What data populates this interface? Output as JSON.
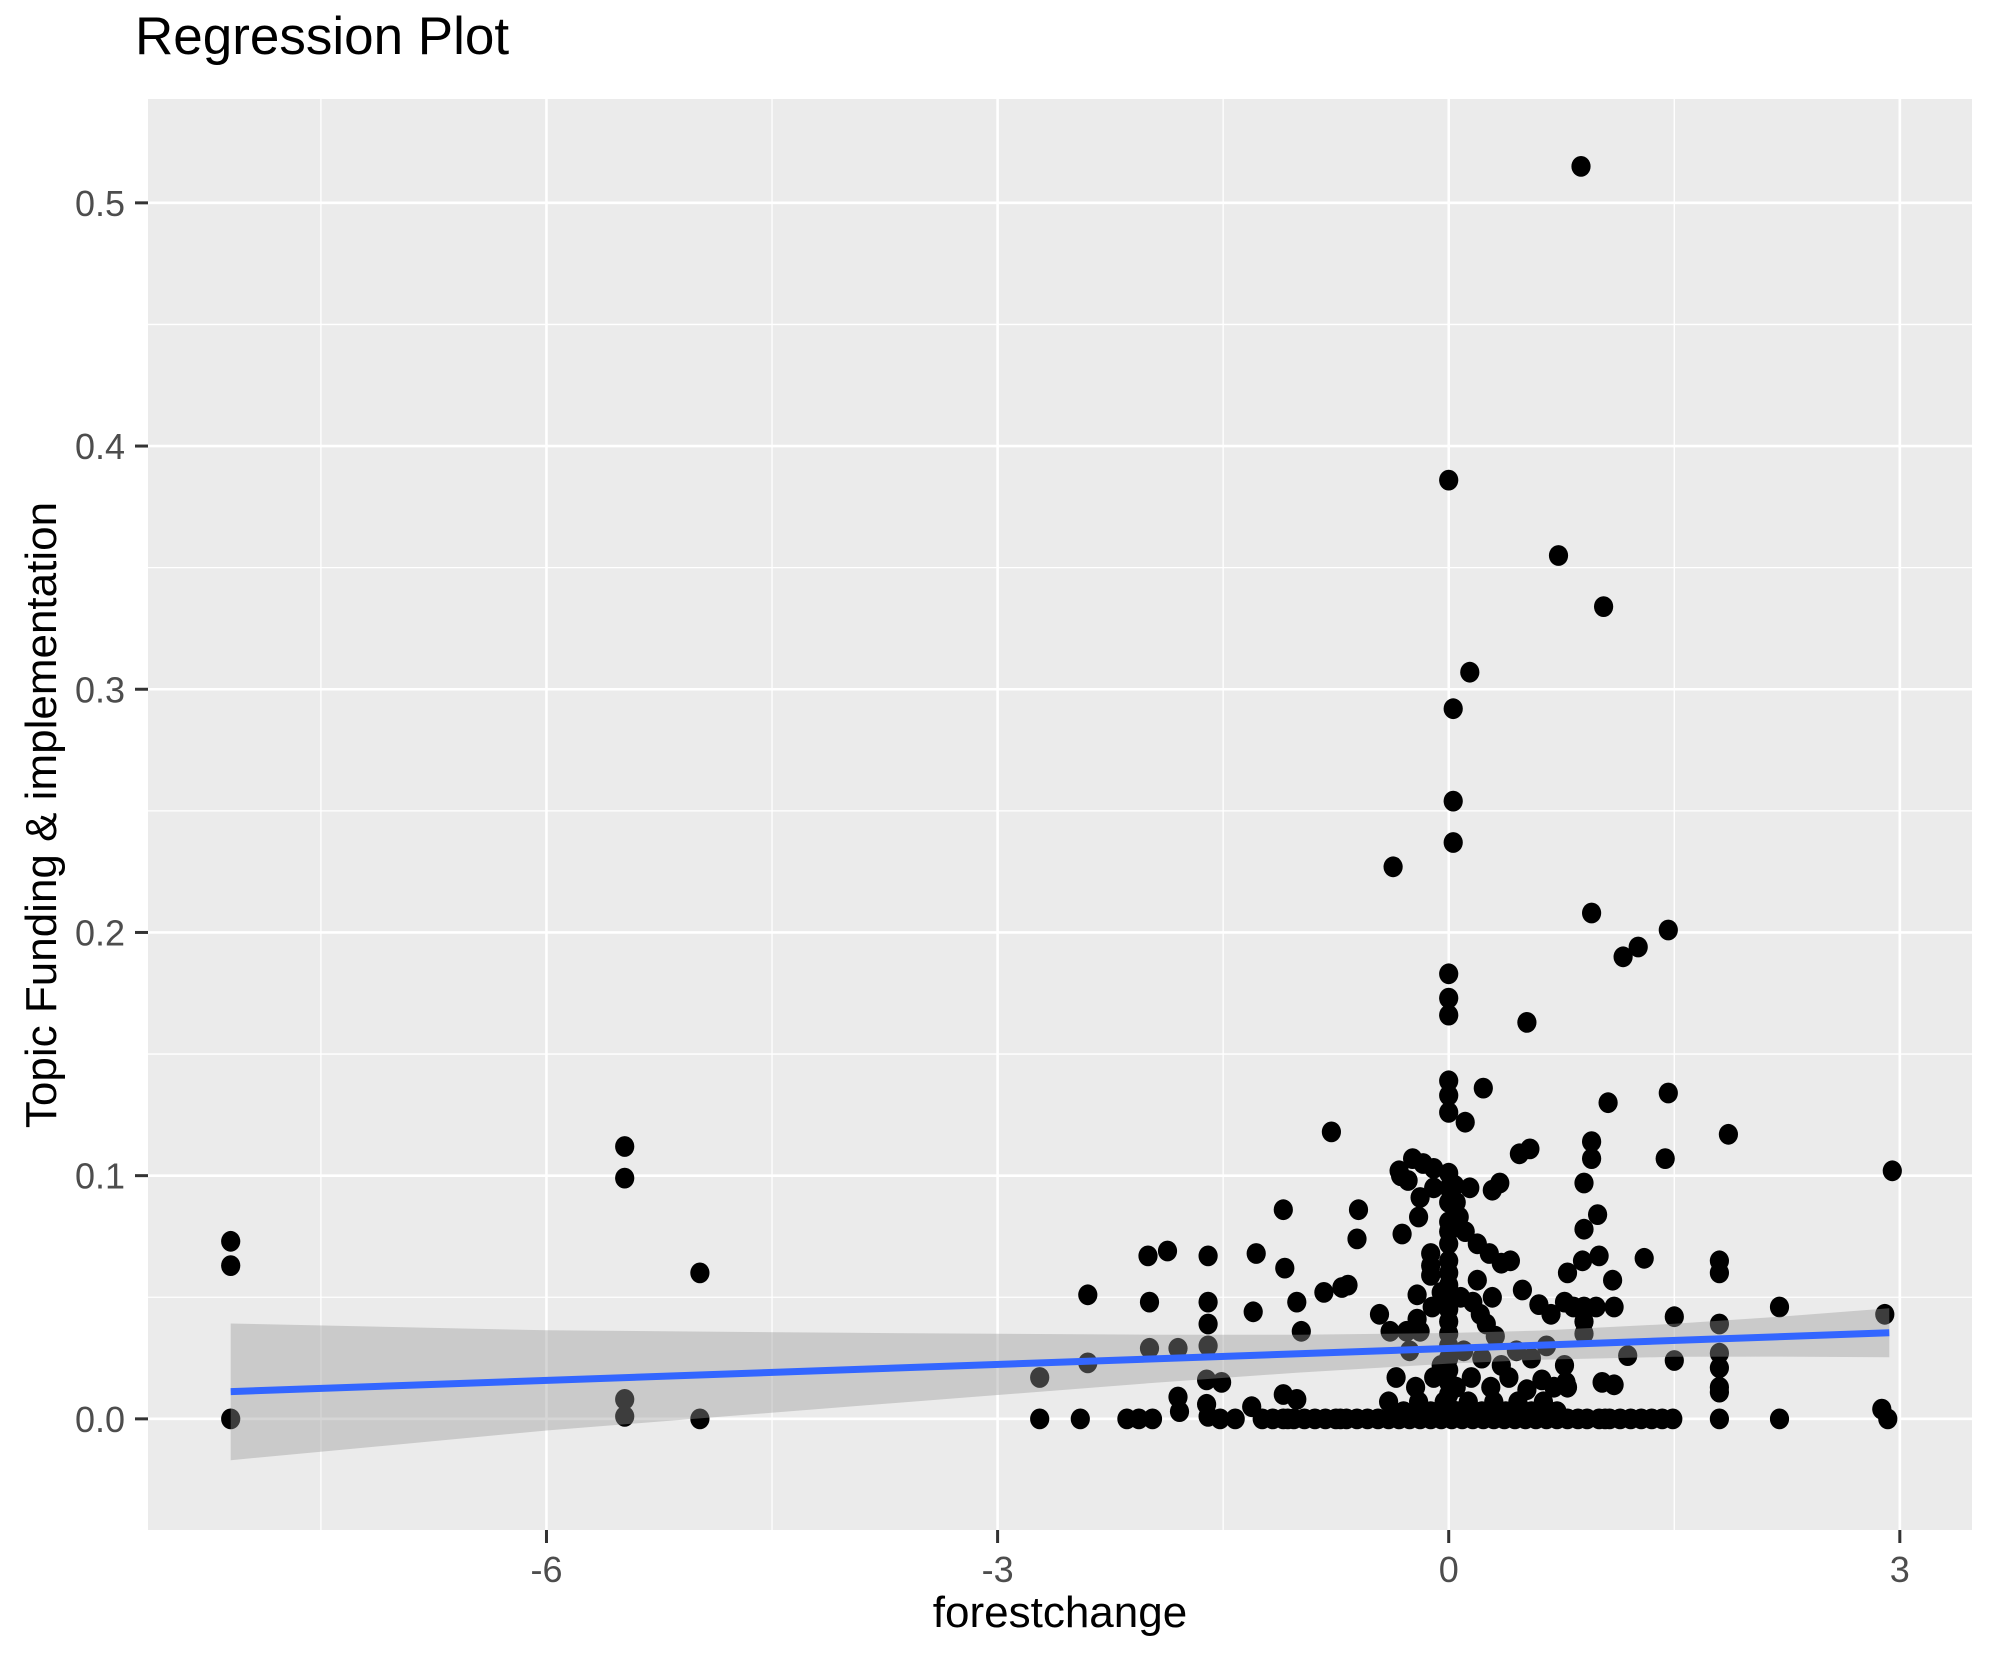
{
  "title": "Regression Plot",
  "chart_data": {
    "type": "scatter",
    "title": "Regression Plot",
    "xlabel": "forestchange",
    "ylabel": "Topic Funding & implementation",
    "xlim": [
      -8.65,
      3.48
    ],
    "ylim": [
      -0.0457,
      0.5427
    ],
    "grid": true,
    "legend": "none",
    "x_ticks": [
      {
        "value": -6,
        "label": "-6"
      },
      {
        "value": -3,
        "label": "-3"
      },
      {
        "value": 0,
        "label": "0"
      },
      {
        "value": 3,
        "label": "3"
      }
    ],
    "y_ticks": [
      {
        "value": 0.0,
        "label": "0.0"
      },
      {
        "value": 0.1,
        "label": "0.1"
      },
      {
        "value": 0.2,
        "label": "0.2"
      },
      {
        "value": 0.3,
        "label": "0.3"
      },
      {
        "value": 0.4,
        "label": "0.4"
      },
      {
        "value": 0.5,
        "label": "0.5"
      }
    ],
    "x_minor_ticks": [
      -7.5,
      -4.5,
      -1.5,
      1.5
    ],
    "y_minor_ticks": [
      0.05,
      0.15,
      0.25,
      0.35,
      0.45
    ],
    "regression_line": {
      "x1": -8.1,
      "y1": 0.0112,
      "x2": 2.93,
      "y2": 0.0354
    },
    "confidence_ribbon": [
      {
        "x": -8.1,
        "lo": -0.017,
        "hi": 0.0392
      },
      {
        "x": -6.0,
        "lo": -0.0048,
        "hi": 0.0364
      },
      {
        "x": -4.0,
        "lo": 0.005,
        "hi": 0.0354
      },
      {
        "x": -2.0,
        "lo": 0.0146,
        "hi": 0.0346
      },
      {
        "x": -1.0,
        "lo": 0.019,
        "hi": 0.0346
      },
      {
        "x": 0.0,
        "lo": 0.0227,
        "hi": 0.0353
      },
      {
        "x": 0.6,
        "lo": 0.0243,
        "hi": 0.0363
      },
      {
        "x": 1.5,
        "lo": 0.0255,
        "hi": 0.0391
      },
      {
        "x": 2.2,
        "lo": 0.0256,
        "hi": 0.042
      },
      {
        "x": 2.93,
        "lo": 0.0253,
        "hi": 0.0455
      }
    ],
    "points": [
      [
        -8.1,
        0.073
      ],
      [
        -8.1,
        0.063
      ],
      [
        -8.1,
        0.0
      ],
      [
        -5.48,
        0.112
      ],
      [
        -5.48,
        0.099
      ],
      [
        -5.48,
        0.008
      ],
      [
        -5.48,
        0.001
      ],
      [
        -4.98,
        0.06
      ],
      [
        -4.98,
        0.0
      ],
      [
        -2.72,
        0.017
      ],
      [
        -2.72,
        0.0
      ],
      [
        -2.45,
        0.0
      ],
      [
        -2.4,
        0.051
      ],
      [
        -2.4,
        0.023
      ],
      [
        -2.14,
        0.0
      ],
      [
        -2.06,
        0.0
      ],
      [
        -2.0,
        0.067
      ],
      [
        -1.99,
        0.048
      ],
      [
        -1.99,
        0.029
      ],
      [
        -1.97,
        0.0
      ],
      [
        -1.87,
        0.069
      ],
      [
        -1.8,
        0.029
      ],
      [
        -1.8,
        0.009
      ],
      [
        -1.79,
        0.003
      ],
      [
        -1.61,
        0.016
      ],
      [
        -1.61,
        0.006
      ],
      [
        -1.6,
        0.067
      ],
      [
        -1.6,
        0.048
      ],
      [
        -1.6,
        0.039
      ],
      [
        -1.6,
        0.03
      ],
      [
        -1.6,
        0.001
      ],
      [
        -1.52,
        0.0
      ],
      [
        -1.51,
        0.015
      ],
      [
        -1.42,
        0.0
      ],
      [
        -1.31,
        0.005
      ],
      [
        -1.3,
        0.044
      ],
      [
        -1.28,
        0.068
      ],
      [
        -1.1,
        0.086
      ],
      [
        -1.1,
        0.01
      ],
      [
        -1.09,
        0.062
      ],
      [
        -1.07,
        0.0
      ],
      [
        -1.01,
        0.048
      ],
      [
        -1.01,
        0.008
      ],
      [
        -0.98,
        0.036
      ],
      [
        -0.83,
        0.052
      ],
      [
        -0.78,
        0.118
      ],
      [
        -0.72,
        0.0
      ],
      [
        -0.71,
        0.054
      ],
      [
        -0.67,
        0.055
      ],
      [
        -0.61,
        0.074
      ],
      [
        -0.6,
        0.086
      ],
      [
        -0.46,
        0.043
      ],
      [
        -0.4,
        0.007
      ],
      [
        -0.39,
        0.036
      ],
      [
        -0.37,
        0.227
      ],
      [
        -0.35,
        0.017
      ],
      [
        -0.33,
        0.102
      ],
      [
        -0.32,
        0.1
      ],
      [
        -0.31,
        0.076
      ],
      [
        -0.3,
        0.003
      ],
      [
        -0.28,
        0.036
      ],
      [
        -0.27,
        0.098
      ],
      [
        -0.26,
        0.028
      ],
      [
        -0.24,
        0.107
      ],
      [
        -0.22,
        0.013
      ],
      [
        -0.21,
        0.051
      ],
      [
        -0.21,
        0.041
      ],
      [
        -0.2,
        0.083
      ],
      [
        -0.2,
        0.007
      ],
      [
        -0.19,
        0.091
      ],
      [
        -0.19,
        0.036
      ],
      [
        -0.17,
        0.105
      ],
      [
        -0.12,
        0.068
      ],
      [
        -0.12,
        0.063
      ],
      [
        -0.12,
        0.059
      ],
      [
        -0.12,
        0.003
      ],
      [
        -0.11,
        0.046
      ],
      [
        -0.1,
        0.103
      ],
      [
        -0.1,
        0.095
      ],
      [
        -0.1,
        0.017
      ],
      [
        -0.05,
        0.052
      ],
      [
        -0.05,
        0.022
      ],
      [
        -0.03,
        0.007
      ],
      [
        0.0,
        0.386
      ],
      [
        0.0,
        0.183
      ],
      [
        0.0,
        0.173
      ],
      [
        0.0,
        0.166
      ],
      [
        0.0,
        0.139
      ],
      [
        0.0,
        0.133
      ],
      [
        0.0,
        0.126
      ],
      [
        0.0,
        0.101
      ],
      [
        0.0,
        0.095
      ],
      [
        0.0,
        0.089
      ],
      [
        0.0,
        0.081
      ],
      [
        0.0,
        0.077
      ],
      [
        0.0,
        0.072
      ],
      [
        0.0,
        0.065
      ],
      [
        0.0,
        0.06
      ],
      [
        0.0,
        0.055
      ],
      [
        0.0,
        0.05
      ],
      [
        0.0,
        0.045
      ],
      [
        0.0,
        0.04
      ],
      [
        0.0,
        0.035
      ],
      [
        0.0,
        0.03
      ],
      [
        0.0,
        0.025
      ],
      [
        0.0,
        0.02
      ],
      [
        0.0,
        0.015
      ],
      [
        0.0,
        0.01
      ],
      [
        0.0,
        0.005
      ],
      [
        0.03,
        0.292
      ],
      [
        0.03,
        0.254
      ],
      [
        0.03,
        0.237
      ],
      [
        0.04,
        0.096
      ],
      [
        0.05,
        0.089
      ],
      [
        0.05,
        0.013
      ],
      [
        0.06,
        0.003
      ],
      [
        0.07,
        0.083
      ],
      [
        0.08,
        0.05
      ],
      [
        0.1,
        0.028
      ],
      [
        0.11,
        0.122
      ],
      [
        0.11,
        0.077
      ],
      [
        0.13,
        0.007
      ],
      [
        0.14,
        0.307
      ],
      [
        0.14,
        0.095
      ],
      [
        0.15,
        0.017
      ],
      [
        0.16,
        0.048
      ],
      [
        0.19,
        0.072
      ],
      [
        0.19,
        0.057
      ],
      [
        0.21,
        0.043
      ],
      [
        0.22,
        0.025
      ],
      [
        0.22,
        0.003
      ],
      [
        0.23,
        0.136
      ],
      [
        0.25,
        0.039
      ],
      [
        0.27,
        0.068
      ],
      [
        0.28,
        0.013
      ],
      [
        0.29,
        0.094
      ],
      [
        0.29,
        0.05
      ],
      [
        0.3,
        0.007
      ],
      [
        0.31,
        0.034
      ],
      [
        0.34,
        0.097
      ],
      [
        0.35,
        0.064
      ],
      [
        0.35,
        0.022
      ],
      [
        0.38,
        0.003
      ],
      [
        0.4,
        0.017
      ],
      [
        0.41,
        0.065
      ],
      [
        0.44,
        0.0
      ],
      [
        0.45,
        0.028
      ],
      [
        0.46,
        0.007
      ],
      [
        0.47,
        0.109
      ],
      [
        0.49,
        0.053
      ],
      [
        0.52,
        0.163
      ],
      [
        0.52,
        0.012
      ],
      [
        0.54,
        0.111
      ],
      [
        0.55,
        0.025
      ],
      [
        0.55,
        0.003
      ],
      [
        0.58,
        0.0
      ],
      [
        0.6,
        0.047
      ],
      [
        0.62,
        0.016
      ],
      [
        0.63,
        0.007
      ],
      [
        0.65,
        0.03
      ],
      [
        0.68,
        0.043
      ],
      [
        0.7,
        0.013
      ],
      [
        0.72,
        0.003
      ],
      [
        0.73,
        0.355
      ],
      [
        0.77,
        0.048
      ],
      [
        0.77,
        0.022
      ],
      [
        0.78,
        0.015
      ],
      [
        0.79,
        0.06
      ],
      [
        0.79,
        0.013
      ],
      [
        0.83,
        0.046
      ],
      [
        0.88,
        0.515
      ],
      [
        0.89,
        0.065
      ],
      [
        0.9,
        0.097
      ],
      [
        0.9,
        0.078
      ],
      [
        0.9,
        0.046
      ],
      [
        0.9,
        0.04
      ],
      [
        0.9,
        0.035
      ],
      [
        0.92,
        0.0
      ],
      [
        0.95,
        0.208
      ],
      [
        0.95,
        0.114
      ],
      [
        0.95,
        0.107
      ],
      [
        0.98,
        0.046
      ],
      [
        0.99,
        0.084
      ],
      [
        1.0,
        0.067
      ],
      [
        1.02,
        0.015
      ],
      [
        1.03,
        0.334
      ],
      [
        1.04,
        0.0
      ],
      [
        1.06,
        0.13
      ],
      [
        1.09,
        0.057
      ],
      [
        1.1,
        0.046
      ],
      [
        1.1,
        0.014
      ],
      [
        1.16,
        0.19
      ],
      [
        1.19,
        0.026
      ],
      [
        1.21,
        0.0
      ],
      [
        1.26,
        0.194
      ],
      [
        1.28,
        0.0
      ],
      [
        1.3,
        0.066
      ],
      [
        1.35,
        0.0
      ],
      [
        1.42,
        0.0
      ],
      [
        1.44,
        0.107
      ],
      [
        1.46,
        0.201
      ],
      [
        1.46,
        0.134
      ],
      [
        1.49,
        0.0
      ],
      [
        1.5,
        0.042
      ],
      [
        1.5,
        0.024
      ],
      [
        1.8,
        0.065
      ],
      [
        1.8,
        0.06
      ],
      [
        1.8,
        0.039
      ],
      [
        1.8,
        0.027
      ],
      [
        1.8,
        0.021
      ],
      [
        1.8,
        0.013
      ],
      [
        1.8,
        0.011
      ],
      [
        1.8,
        0.0
      ],
      [
        1.86,
        0.117
      ],
      [
        2.2,
        0.046
      ],
      [
        2.2,
        0.0
      ],
      [
        2.88,
        0.004
      ],
      [
        2.9,
        0.043
      ],
      [
        2.92,
        0.0
      ],
      [
        2.95,
        0.102
      ],
      [
        -1.24,
        0.0
      ],
      [
        -1.17,
        0.0
      ],
      [
        -1.1,
        0.0
      ],
      [
        -1.03,
        0.0
      ],
      [
        -0.96,
        0.0
      ],
      [
        -0.89,
        0.0
      ],
      [
        -0.82,
        0.0
      ],
      [
        -0.75,
        0.0
      ],
      [
        -0.68,
        0.0
      ],
      [
        -0.61,
        0.0
      ],
      [
        -0.54,
        0.0
      ],
      [
        -0.47,
        0.0
      ],
      [
        -0.4,
        0.0
      ],
      [
        -0.33,
        0.0
      ],
      [
        -0.26,
        0.0
      ],
      [
        -0.19,
        0.0
      ],
      [
        -0.12,
        0.0
      ],
      [
        -0.05,
        0.0
      ],
      [
        0.02,
        0.0
      ],
      [
        0.09,
        0.0
      ],
      [
        0.16,
        0.0
      ],
      [
        0.23,
        0.0
      ],
      [
        0.3,
        0.0
      ],
      [
        0.37,
        0.0
      ],
      [
        0.51,
        0.0
      ],
      [
        0.65,
        0.0
      ],
      [
        0.72,
        0.0
      ],
      [
        0.79,
        0.0
      ],
      [
        0.86,
        0.0
      ],
      [
        1.0,
        0.0
      ],
      [
        1.07,
        0.0
      ],
      [
        1.14,
        0.0
      ]
    ],
    "colors": {
      "point": "#000000",
      "line": "#3366FF",
      "ribbon": "#999999",
      "ribbon_opacity": 0.4,
      "panel": "#EBEBEB",
      "grid": "#FFFFFF",
      "tick_text": "#4D4D4D",
      "tick_mark": "#333333",
      "axis_text": "#000000"
    }
  }
}
